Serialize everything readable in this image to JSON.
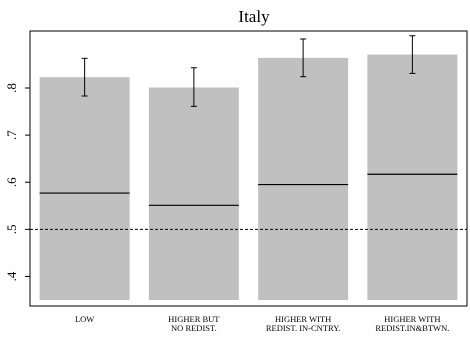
{
  "chart_data": {
    "type": "bar",
    "title": "Italy",
    "xlabel": "",
    "ylabel": "",
    "categories": [
      [
        "LOW"
      ],
      [
        "HIGHER BUT",
        "NO REDIST."
      ],
      [
        "HIGHER WITH",
        "REDIST. IN-CNTRY."
      ],
      [
        "HIGHER WITH",
        "REDIST.IN&BTWN."
      ]
    ],
    "values": [
      0.823,
      0.801,
      0.864,
      0.871
    ],
    "ci_low": [
      0.783,
      0.761,
      0.824,
      0.831
    ],
    "ci_high": [
      0.863,
      0.843,
      0.904,
      0.911
    ],
    "inner_line": [
      0.577,
      0.551,
      0.595,
      0.617
    ],
    "reference_line": 0.5,
    "ylim": [
      0.35,
      0.94
    ],
    "yticks": [
      0.4,
      0.5,
      0.6,
      0.7,
      0.8
    ],
    "ytick_labels": [
      ".4",
      ".5",
      ".6",
      ".7",
      ".8"
    ],
    "grid": false,
    "colors": {
      "bar": "#c0c0c0",
      "line": "#000000",
      "frame": "#000000"
    }
  }
}
